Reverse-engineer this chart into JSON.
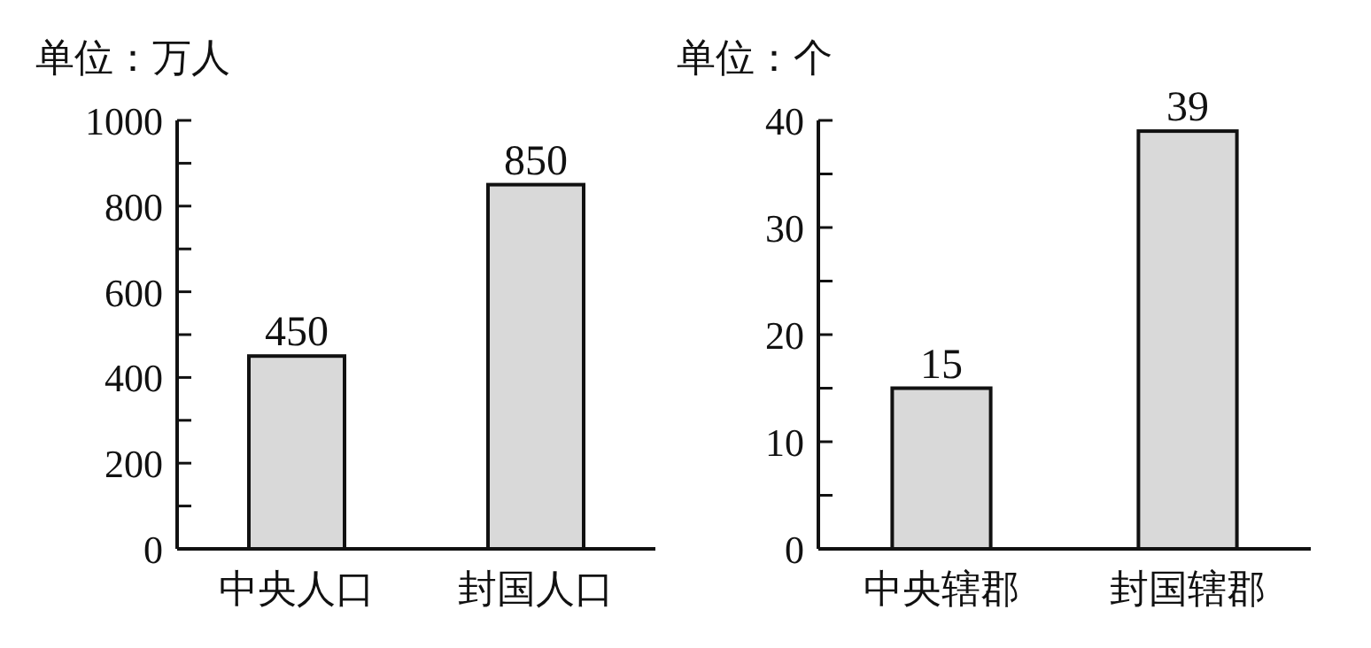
{
  "chart_data": [
    {
      "type": "bar",
      "ylabel": "单位：万人",
      "categories": [
        "中央人口",
        "封国人口"
      ],
      "values": [
        450,
        850
      ],
      "color": "#d9d9d9",
      "ylim": [
        0,
        1000
      ],
      "data_labels": true,
      "yticks": [
        0,
        {
          "value": 100,
          "label": null
        },
        200,
        {
          "value": 300,
          "label": null
        },
        400,
        {
          "value": 500,
          "label": null
        },
        600,
        {
          "value": 700,
          "label": null
        },
        800,
        {
          "value": 900,
          "label": null
        },
        1000
      ]
    },
    {
      "type": "bar",
      "ylabel": "单位：个",
      "categories": [
        "中央辖郡",
        "封国辖郡"
      ],
      "values": [
        15,
        39
      ],
      "color": "#d9d9d9",
      "ylim": [
        0,
        40
      ],
      "data_labels": true,
      "yticks": [
        0,
        {
          "value": 5,
          "label": null
        },
        10,
        {
          "value": 15,
          "label": null
        },
        20,
        {
          "value": 25,
          "label": null
        },
        30,
        {
          "value": 35,
          "label": null
        },
        40
      ]
    }
  ]
}
